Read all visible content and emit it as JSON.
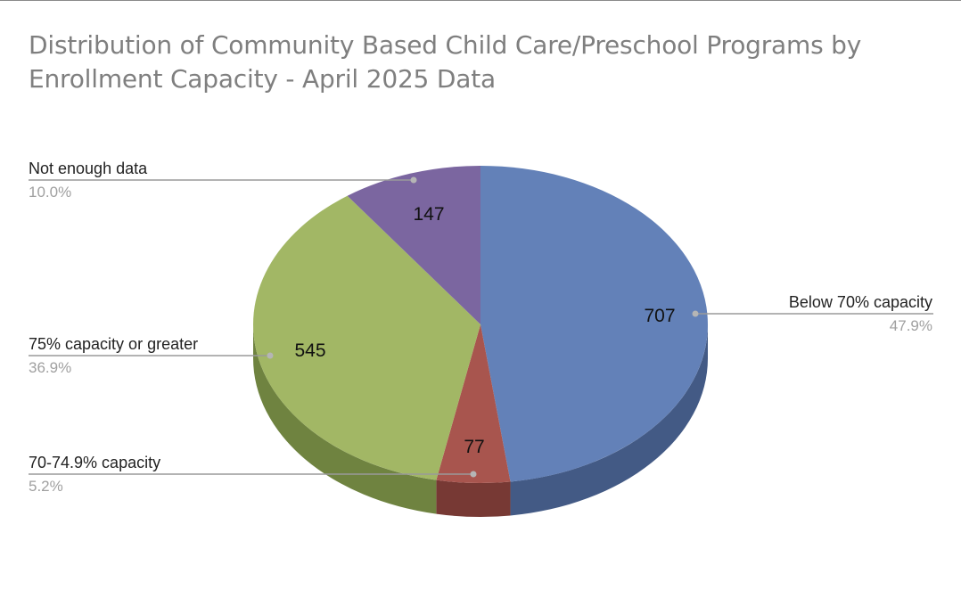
{
  "title": {
    "line1": "Distribution of Community Based Child Care/Preschool Programs by",
    "line2": "Enrollment Capacity - April 2025 Data"
  },
  "chart_data": {
    "type": "pie",
    "style": "3d",
    "title": "Distribution of Community Based Child Care/Preschool Programs by Enrollment Capacity - April 2025 Data",
    "slices": [
      {
        "label": "Below 70% capacity",
        "value": 707,
        "percent": "47.9%",
        "color": "#6381b8",
        "side_color": "#435a85"
      },
      {
        "label": "70-74.9% capacity",
        "value": 77,
        "percent": "5.2%",
        "color": "#a8554e",
        "side_color": "#773934"
      },
      {
        "label": "75% capacity or greater",
        "value": 545,
        "percent": "36.9%",
        "color": "#a2b765",
        "side_color": "#6f8340"
      },
      {
        "label": "Not enough data",
        "value": 147,
        "percent": "10.0%",
        "color": "#7b66a0",
        "side_color": "#574a72"
      }
    ],
    "legend": "none",
    "data_labels": "value inside slice, category and percent outside with leader lines"
  }
}
